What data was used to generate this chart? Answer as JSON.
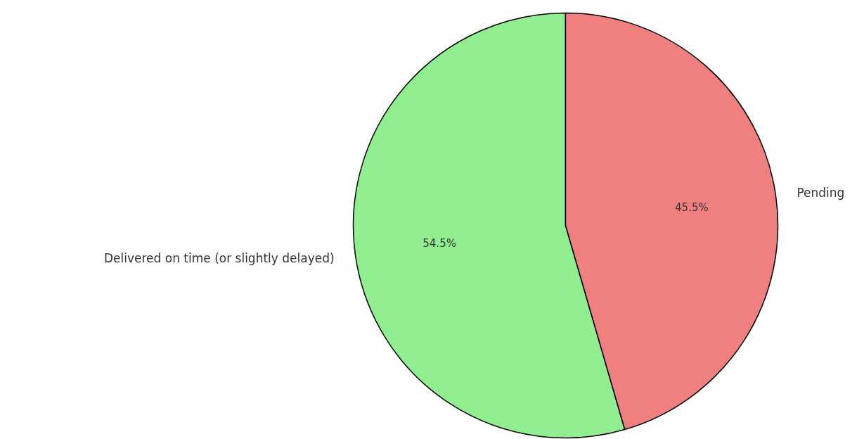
{
  "chart_data": {
    "type": "pie",
    "categories": [
      "Delivered on time (or slightly delayed)",
      "Pending"
    ],
    "values": [
      54.5,
      45.5
    ],
    "colors": [
      "#90ee90",
      "#f08080"
    ],
    "value_labels": [
      "54.5%",
      "45.5%"
    ]
  }
}
